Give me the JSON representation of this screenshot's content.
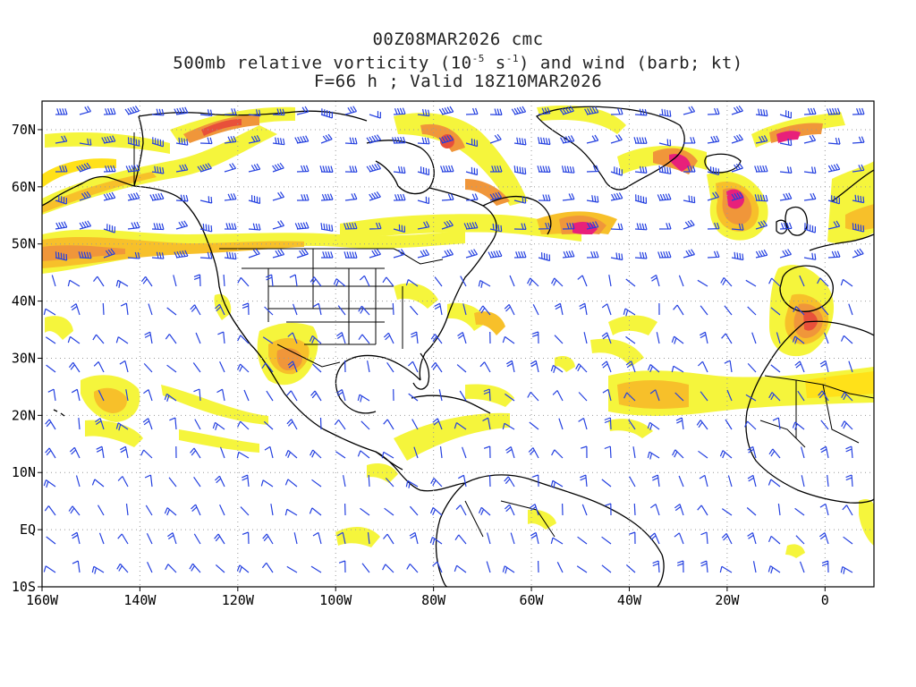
{
  "title": {
    "line1": "00Z08MAR2026 cmc",
    "line2_pre": "500mb relative vorticity (10",
    "line2_exp1": "-5",
    "line2_mid": " s",
    "line2_exp2": "-1",
    "line2_post": ") and wind (barb; kt)",
    "line3": "F=66 h ; Valid 18Z10MAR2026"
  },
  "axes": {
    "lat_labels": [
      "70N",
      "60N",
      "50N",
      "40N",
      "30N",
      "20N",
      "10N",
      "EQ",
      "10S"
    ],
    "lat_values": [
      70,
      60,
      50,
      40,
      30,
      20,
      10,
      0,
      -10
    ],
    "lon_labels": [
      "160W",
      "140W",
      "120W",
      "100W",
      "80W",
      "60W",
      "40W",
      "20W",
      "0"
    ],
    "lon_values": [
      -160,
      -140,
      -120,
      -100,
      -80,
      -60,
      -40,
      -20,
      0
    ],
    "lat_range": [
      -10,
      75
    ],
    "lon_range": [
      -160,
      10
    ],
    "grid": "dotted"
  },
  "colors": {
    "shade_light": "#f5f53c",
    "shade_yellow": "#ffe119",
    "shade_gold": "#f7c02a",
    "shade_orange": "#f0963a",
    "shade_red": "#e8503a",
    "shade_magenta": "#e8207a",
    "barb": "#2440e0",
    "coast": "#000000"
  }
}
